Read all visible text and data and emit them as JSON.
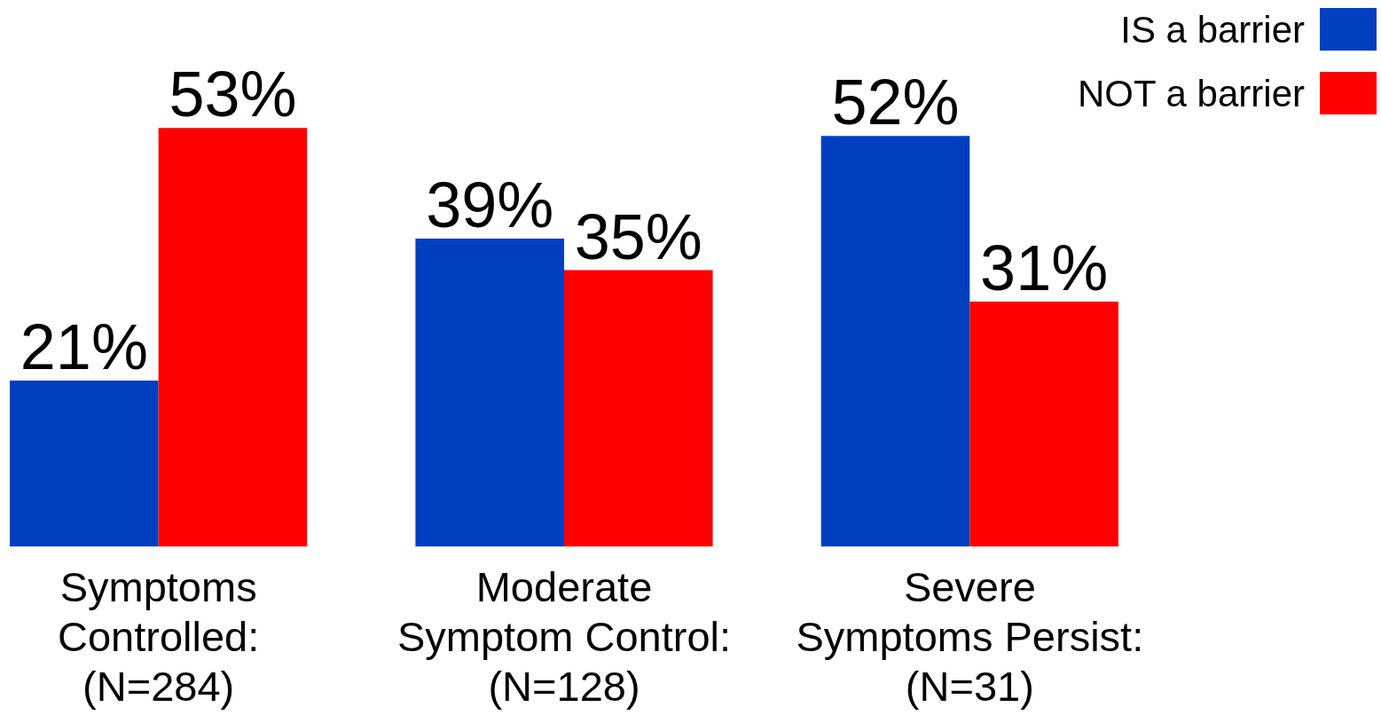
{
  "chart_data": {
    "type": "bar",
    "categories": [
      "Symptoms\nControlled:\n(N=284)",
      "Moderate\nSymptom Control:\n(N=128)",
      "Severe\nSymptoms Persist:\n(N=31)"
    ],
    "series": [
      {
        "name": "IS a barrier",
        "color": "#0040c0",
        "values": [
          21,
          39,
          52
        ],
        "value_labels": [
          "21%",
          "39%",
          "52%"
        ]
      },
      {
        "name": "NOT a barrier",
        "color": "#ff0000",
        "values": [
          53,
          35,
          31
        ],
        "value_labels": [
          "53%",
          "35%",
          "31%"
        ]
      }
    ],
    "tick_labels": "x",
    "legend": "top right"
  }
}
